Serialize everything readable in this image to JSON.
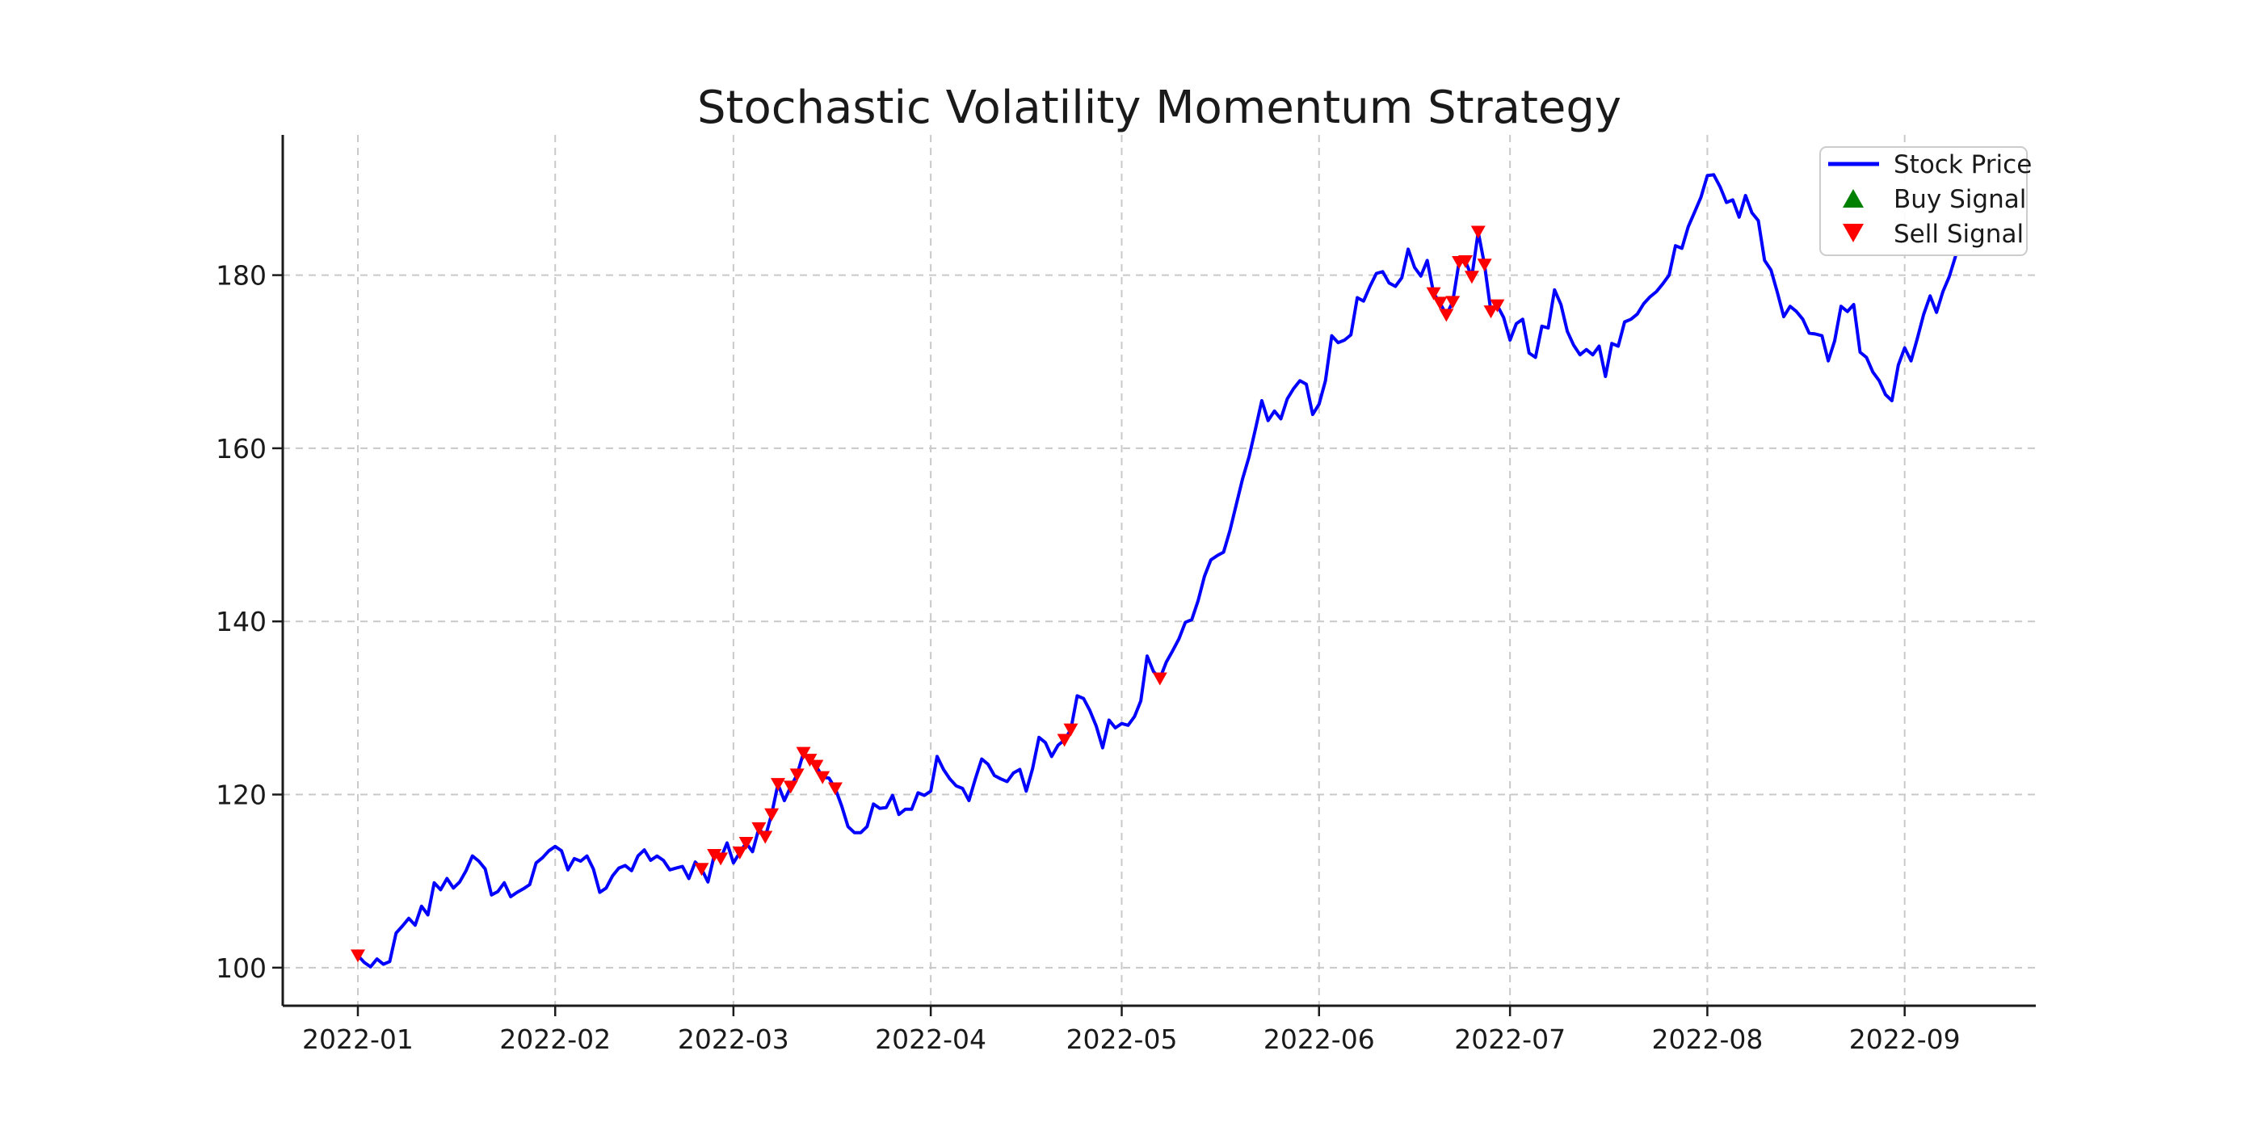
{
  "chart_data": {
    "type": "line",
    "title": "Stochastic Volatility Momentum Strategy",
    "x_start_date": "2022-01-01",
    "x_frequency": "daily",
    "xlabel": "",
    "ylabel": "",
    "grid": true,
    "legend_position": "upper right",
    "ylim": [
      95.6,
      196.2
    ],
    "y_ticks": [
      100,
      120,
      140,
      160,
      180
    ],
    "x_ticks": [
      {
        "label": "2022-01",
        "day_index": 0
      },
      {
        "label": "2022-02",
        "day_index": 31
      },
      {
        "label": "2022-03",
        "day_index": 59
      },
      {
        "label": "2022-04",
        "day_index": 90
      },
      {
        "label": "2022-05",
        "day_index": 120
      },
      {
        "label": "2022-06",
        "day_index": 151
      },
      {
        "label": "2022-07",
        "day_index": 181
      },
      {
        "label": "2022-08",
        "day_index": 212
      },
      {
        "label": "2022-09",
        "day_index": 243
      }
    ],
    "colors": {
      "price_line": "#0000ff",
      "buy_marker": "#008000",
      "sell_marker": "#ff0000",
      "grid_line": "#c9c9c9",
      "axis": "#1a1a1a",
      "legend_border": "#cccccc"
    },
    "series": [
      {
        "name": "Stock Price",
        "values": [
          101.4,
          100.6,
          100.1,
          101.0,
          100.4,
          100.7,
          104.0,
          104.8,
          105.7,
          104.9,
          107.1,
          106.1,
          109.8,
          109.0,
          110.3,
          109.2,
          109.9,
          111.2,
          112.9,
          112.3,
          111.4,
          108.4,
          108.8,
          109.8,
          108.2,
          108.7,
          109.1,
          109.6,
          112.1,
          112.7,
          113.5,
          114.0,
          113.5,
          111.3,
          112.6,
          112.3,
          112.9,
          111.4,
          108.7,
          109.2,
          110.6,
          111.5,
          111.8,
          111.2,
          112.9,
          113.6,
          112.4,
          112.9,
          112.4,
          111.3,
          111.5,
          111.7,
          110.3,
          112.2,
          111.4,
          109.9,
          113.0,
          112.6,
          114.4,
          112.1,
          113.3,
          114.4,
          113.4,
          116.1,
          115.1,
          117.7,
          121.2,
          119.3,
          120.9,
          122.3,
          124.8,
          124.0,
          123.3,
          122.0,
          121.9,
          120.7,
          118.7,
          116.3,
          115.6,
          115.6,
          116.3,
          118.9,
          118.4,
          118.5,
          119.9,
          117.7,
          118.3,
          118.3,
          120.2,
          119.9,
          120.4,
          124.4,
          122.9,
          121.8,
          121.0,
          120.7,
          119.3,
          121.8,
          124.1,
          123.5,
          122.2,
          121.8,
          121.5,
          122.5,
          122.9,
          120.4,
          123.0,
          126.6,
          126.0,
          124.4,
          125.7,
          126.3,
          127.5,
          131.4,
          131.1,
          129.7,
          127.9,
          125.4,
          128.6,
          127.7,
          128.2,
          128.0,
          129.0,
          130.8,
          136.0,
          134.2,
          133.4,
          135.3,
          136.6,
          138.0,
          139.9,
          140.2,
          142.4,
          145.2,
          147.1,
          147.6,
          148.0,
          150.5,
          153.5,
          156.5,
          159.0,
          162.2,
          165.5,
          163.2,
          164.3,
          163.4,
          165.7,
          166.9,
          167.8,
          167.4,
          163.9,
          165.1,
          167.8,
          173.0,
          172.2,
          172.5,
          173.1,
          177.4,
          177.0,
          178.7,
          180.2,
          180.4,
          179.1,
          178.7,
          179.7,
          183.0,
          180.9,
          179.9,
          181.7,
          177.9,
          176.8,
          175.4,
          176.9,
          181.5,
          181.6,
          179.8,
          185.0,
          181.2,
          175.8,
          176.5,
          175.1,
          172.5,
          174.4,
          174.9,
          171.0,
          170.5,
          174.1,
          173.9,
          178.3,
          176.6,
          173.5,
          171.9,
          170.8,
          171.4,
          170.8,
          171.8,
          168.3,
          172.1,
          171.8,
          174.6,
          174.9,
          175.5,
          176.7,
          177.5,
          178.1,
          179.0,
          180.0,
          183.4,
          183.1,
          185.6,
          187.3,
          189.0,
          191.5,
          191.6,
          190.2,
          188.4,
          188.7,
          186.7,
          189.2,
          187.2,
          186.3,
          181.7,
          180.6,
          178.0,
          175.2,
          176.4,
          175.8,
          174.9,
          173.3,
          173.2,
          173.0,
          170.1,
          172.4,
          176.4,
          175.8,
          176.6,
          171.1,
          170.5,
          168.8,
          167.8,
          166.2,
          165.5,
          169.6,
          171.6,
          170.1,
          172.7,
          175.5,
          177.6,
          175.7,
          178.1,
          179.8,
          182.2
        ]
      }
    ],
    "buy_signals": {
      "label": "Buy Signal",
      "marker": "triangle-up",
      "points": []
    },
    "sell_signals": {
      "label": "Sell Signal",
      "marker": "triangle-down",
      "points": [
        {
          "date": "2022-01-01",
          "value": 101.4
        },
        {
          "date": "2022-02-24",
          "value": 111.4
        },
        {
          "date": "2022-02-26",
          "value": 113.0
        },
        {
          "date": "2022-02-27",
          "value": 112.6
        },
        {
          "date": "2022-03-02",
          "value": 113.3
        },
        {
          "date": "2022-03-03",
          "value": 114.4
        },
        {
          "date": "2022-03-05",
          "value": 116.1
        },
        {
          "date": "2022-03-06",
          "value": 115.1
        },
        {
          "date": "2022-03-07",
          "value": 117.7
        },
        {
          "date": "2022-03-08",
          "value": 121.2
        },
        {
          "date": "2022-03-10",
          "value": 120.9
        },
        {
          "date": "2022-03-11",
          "value": 122.3
        },
        {
          "date": "2022-03-12",
          "value": 124.8
        },
        {
          "date": "2022-03-13",
          "value": 124.0
        },
        {
          "date": "2022-03-14",
          "value": 123.3
        },
        {
          "date": "2022-03-15",
          "value": 122.0
        },
        {
          "date": "2022-03-17",
          "value": 120.7
        },
        {
          "date": "2022-04-22",
          "value": 126.3
        },
        {
          "date": "2022-04-23",
          "value": 127.5
        },
        {
          "date": "2022-05-07",
          "value": 133.4
        },
        {
          "date": "2022-06-19",
          "value": 177.9
        },
        {
          "date": "2022-06-20",
          "value": 176.8
        },
        {
          "date": "2022-06-21",
          "value": 175.4
        },
        {
          "date": "2022-06-22",
          "value": 176.9
        },
        {
          "date": "2022-06-23",
          "value": 181.5
        },
        {
          "date": "2022-06-24",
          "value": 181.6
        },
        {
          "date": "2022-06-25",
          "value": 179.8
        },
        {
          "date": "2022-06-26",
          "value": 185.0
        },
        {
          "date": "2022-06-27",
          "value": 181.2
        },
        {
          "date": "2022-06-28",
          "value": 175.8
        },
        {
          "date": "2022-06-29",
          "value": 176.5
        }
      ]
    }
  }
}
